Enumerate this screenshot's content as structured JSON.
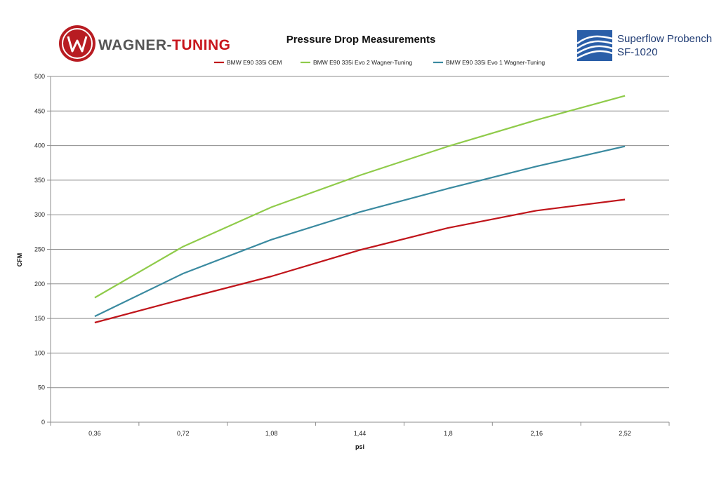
{
  "branding": {
    "left_logo": {
      "name_part1": "WAGNER-",
      "name_part2": "TUNING",
      "part1_color": "#555555",
      "part2_color": "#c8161d",
      "badge_color": "#b81c22"
    },
    "right_logo": {
      "line1": "Superflow Probench",
      "line2": "SF-1020",
      "color": "#1f3b73",
      "icon_color": "#2a5ea8"
    }
  },
  "chart_data": {
    "type": "line",
    "title": "Pressure Drop Measurements",
    "xlabel": "psi",
    "ylabel": "CFM",
    "categories": [
      "0,36",
      "0,72",
      "1,08",
      "1,44",
      "1,8",
      "2,16",
      "2,52"
    ],
    "ylim": [
      0,
      500
    ],
    "yticks": [
      0,
      50,
      100,
      150,
      200,
      250,
      300,
      350,
      400,
      450,
      500
    ],
    "grid": "horizontal",
    "legend_position": "top",
    "series": [
      {
        "name": "BMW E90 335i OEM",
        "color": "#c0151b",
        "values": [
          144,
          178,
          211,
          249,
          281,
          306,
          322
        ]
      },
      {
        "name": "BMW E90 335i Evo 2 Wagner-Tuning",
        "color": "#8fcb4a",
        "values": [
          180,
          254,
          311,
          357,
          399,
          437,
          472
        ]
      },
      {
        "name": "BMW E90 335i Evo 1 Wagner-Tuning",
        "color": "#3a8aa0",
        "values": [
          153,
          215,
          264,
          304,
          338,
          370,
          399
        ]
      }
    ]
  }
}
